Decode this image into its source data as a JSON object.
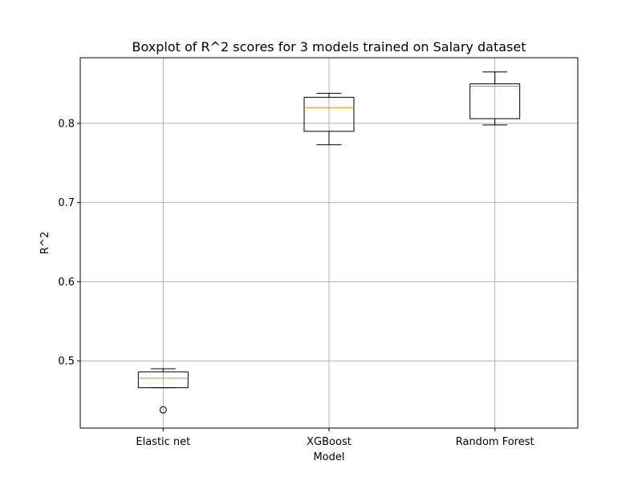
{
  "chart_data": {
    "type": "boxplot",
    "title": "Boxplot of R^2 scores for 3 models trained on Salary dataset",
    "xlabel": "Model",
    "ylabel": "R^2",
    "ylim": [
      0.415,
      0.883
    ],
    "yticks": [
      0.5,
      0.6,
      0.7,
      0.8
    ],
    "ytick_labels": [
      "0.5",
      "0.6",
      "0.7",
      "0.8"
    ],
    "grid": true,
    "categories": [
      "Elastic net",
      "XGBoost",
      "Random Forest"
    ],
    "boxes": [
      {
        "category": "Elastic net",
        "whisker_low": 0.466,
        "q1": 0.466,
        "median": 0.478,
        "q3": 0.486,
        "whisker_high": 0.49,
        "outliers": [
          0.438
        ]
      },
      {
        "category": "XGBoost",
        "whisker_low": 0.773,
        "q1": 0.79,
        "median": 0.82,
        "q3": 0.833,
        "whisker_high": 0.838,
        "outliers": []
      },
      {
        "category": "Random Forest",
        "whisker_low": 0.798,
        "q1": 0.806,
        "median": 0.847,
        "q3": 0.85,
        "whisker_high": 0.865,
        "outliers": []
      }
    ],
    "colors": {
      "box": "#000000",
      "median": "#ff7f0e",
      "grid": "#b0b0b0",
      "outlier": "#000000"
    }
  }
}
